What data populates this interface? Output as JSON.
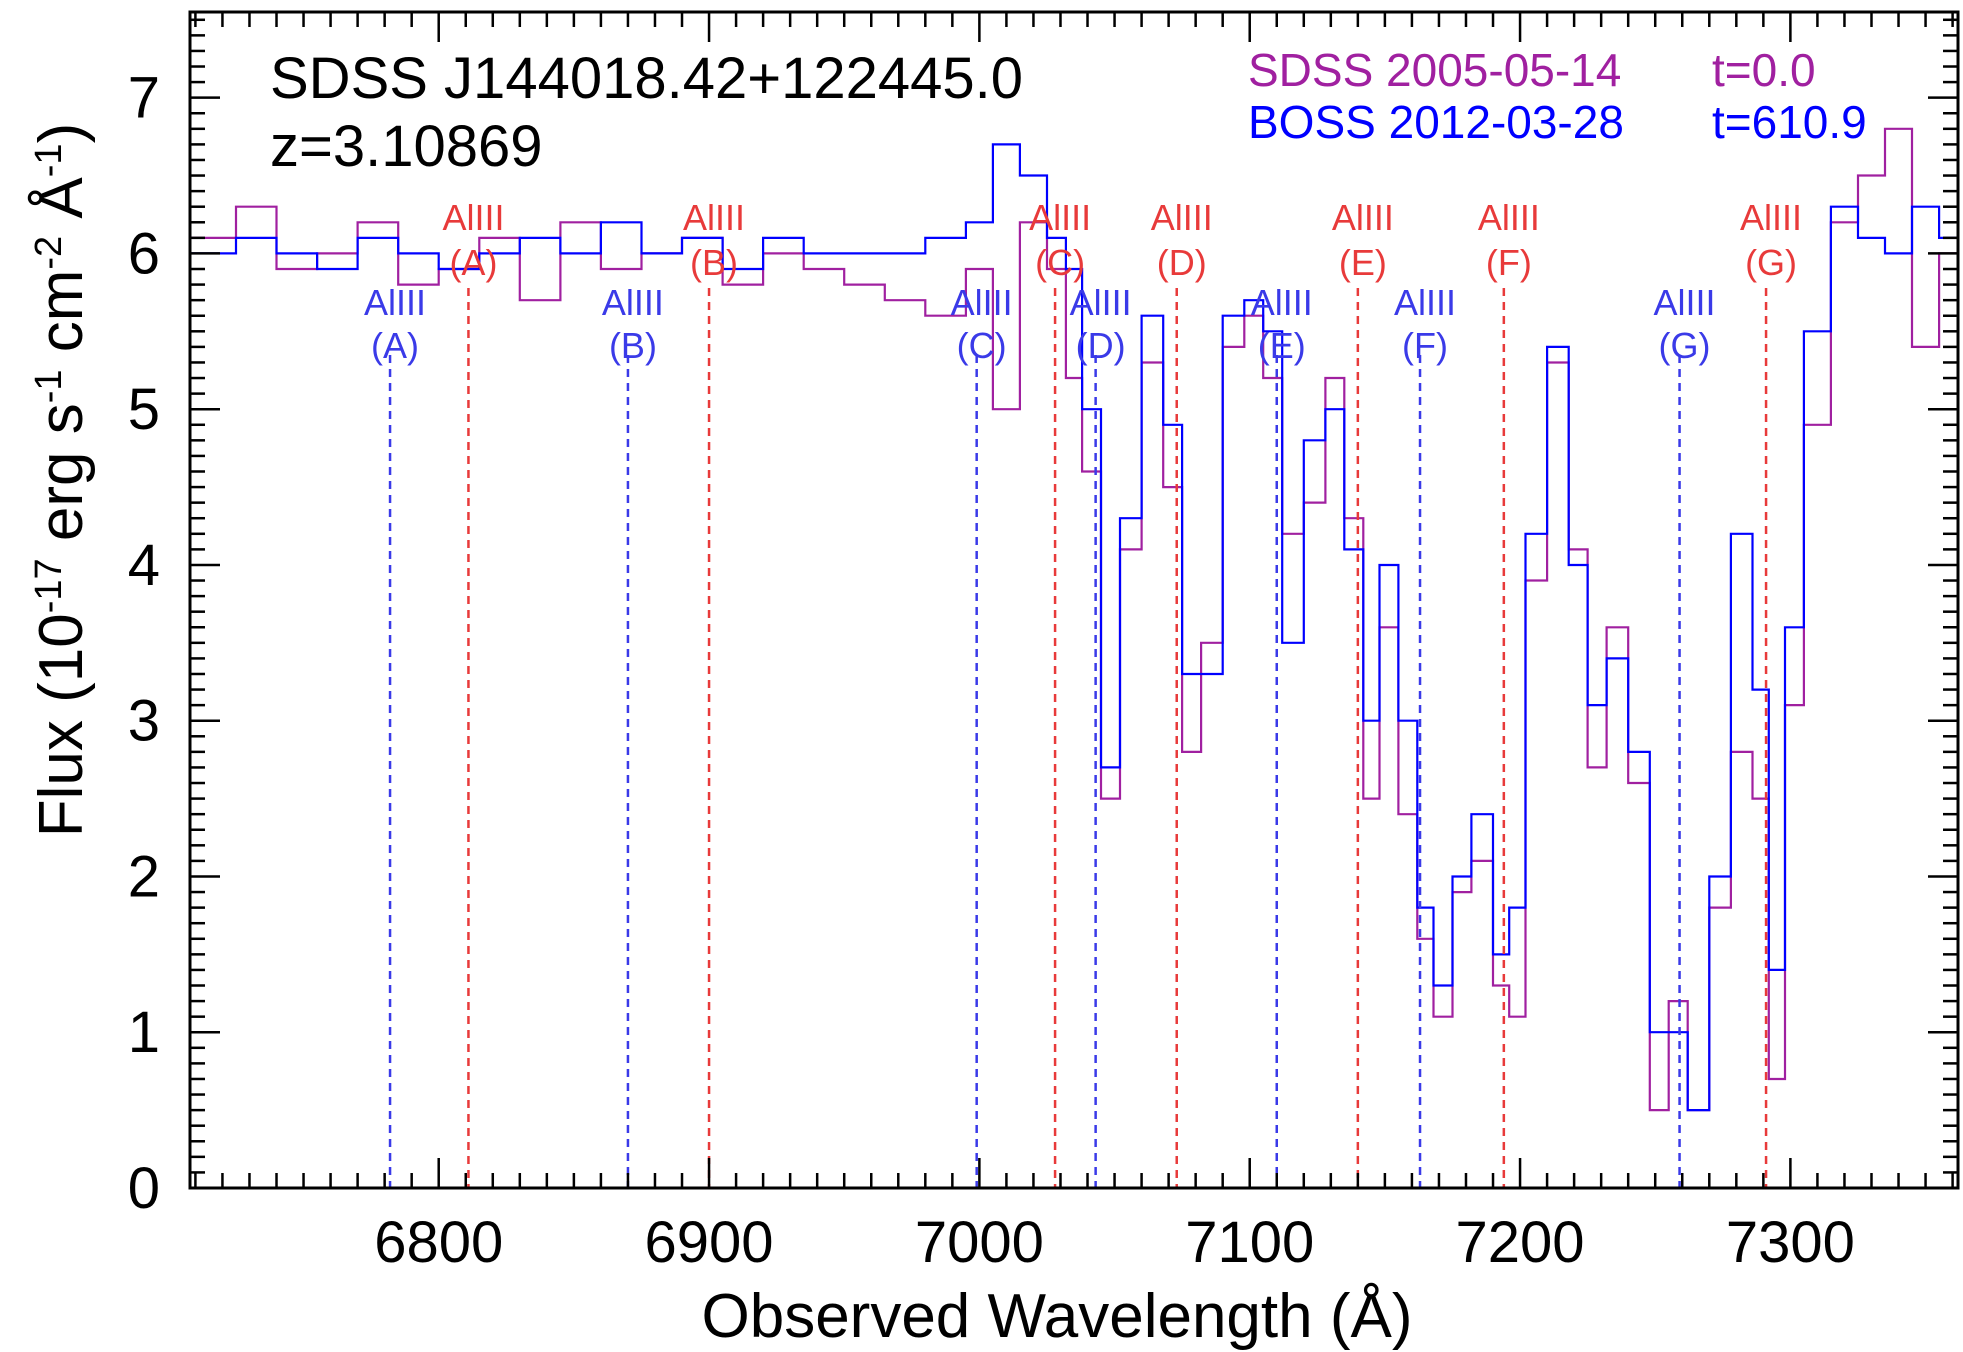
{
  "chart_data": {
    "type": "line",
    "object_name": "SDSS J144018.42+122445.0",
    "redshift_label": "z=3.10869",
    "xlabel": "Observed Wavelength (Å)",
    "ylabel": {
      "prefix": "Flux (10",
      "exp1": "-17",
      "mid1": " erg s",
      "exp2": "-1",
      "mid2": " cm",
      "exp3": "-2",
      "mid3": " Å",
      "exp4": "-1",
      "suffix": ")"
    },
    "xlim": [
      6708,
      7362
    ],
    "ylim": [
      0,
      7.55
    ],
    "xticks": [
      6800,
      6900,
      7000,
      7100,
      7200,
      7300
    ],
    "yticks": [
      0,
      1,
      2,
      3,
      4,
      5,
      6,
      7
    ],
    "series": [
      {
        "name": "SDSS 2005-05-14",
        "time_label": "t=0.0",
        "color": "#a020a0",
        "x": [
          6708,
          6725,
          6740,
          6755,
          6770,
          6785,
          6800,
          6815,
          6830,
          6845,
          6860,
          6875,
          6890,
          6905,
          6920,
          6935,
          6950,
          6965,
          6980,
          6995,
          7005,
          7015,
          7025,
          7032,
          7038,
          7045,
          7052,
          7060,
          7068,
          7075,
          7082,
          7090,
          7098,
          7105,
          7112,
          7120,
          7128,
          7135,
          7142,
          7148,
          7155,
          7162,
          7168,
          7175,
          7182,
          7190,
          7196,
          7202,
          7210,
          7218,
          7225,
          7232,
          7240,
          7248,
          7255,
          7262,
          7270,
          7278,
          7286,
          7292,
          7298,
          7305,
          7315,
          7325,
          7335,
          7345,
          7355,
          7362
        ],
        "y": [
          6.1,
          6.3,
          5.9,
          6.0,
          6.2,
          5.8,
          5.9,
          6.1,
          5.7,
          6.2,
          5.9,
          6.0,
          6.1,
          5.8,
          6.0,
          5.9,
          5.8,
          5.7,
          5.6,
          5.9,
          5.0,
          6.2,
          5.9,
          5.2,
          4.6,
          2.5,
          4.1,
          5.3,
          4.5,
          2.8,
          3.5,
          5.4,
          5.6,
          5.2,
          4.2,
          4.4,
          5.2,
          4.3,
          2.5,
          3.6,
          2.4,
          1.6,
          1.1,
          1.9,
          2.1,
          1.3,
          1.1,
          3.9,
          5.3,
          4.1,
          2.7,
          3.6,
          2.6,
          0.5,
          1.2,
          0.5,
          1.8,
          2.8,
          2.5,
          0.7,
          3.1,
          4.9,
          6.2,
          6.5,
          6.8,
          5.4,
          6.0,
          6.2
        ]
      },
      {
        "name": "BOSS 2012-03-28",
        "time_label": "t=610.9",
        "color": "#0000ff",
        "x": [
          6708,
          6725,
          6740,
          6755,
          6770,
          6785,
          6800,
          6815,
          6830,
          6845,
          6860,
          6875,
          6890,
          6905,
          6920,
          6935,
          6950,
          6965,
          6980,
          6995,
          7005,
          7015,
          7025,
          7032,
          7038,
          7045,
          7052,
          7060,
          7068,
          7075,
          7082,
          7090,
          7098,
          7105,
          7112,
          7120,
          7128,
          7135,
          7142,
          7148,
          7155,
          7162,
          7168,
          7175,
          7182,
          7190,
          7196,
          7202,
          7210,
          7218,
          7225,
          7232,
          7240,
          7248,
          7255,
          7262,
          7270,
          7278,
          7286,
          7292,
          7298,
          7305,
          7315,
          7325,
          7335,
          7345,
          7355,
          7362
        ],
        "y": [
          6.0,
          6.1,
          6.0,
          5.9,
          6.1,
          6.0,
          5.9,
          6.0,
          6.1,
          6.0,
          6.2,
          6.0,
          6.1,
          5.9,
          6.1,
          6.0,
          6.0,
          6.0,
          6.1,
          6.2,
          6.7,
          6.5,
          6.1,
          5.9,
          5.0,
          2.7,
          4.3,
          5.6,
          4.9,
          3.3,
          3.3,
          5.6,
          5.7,
          5.5,
          3.5,
          4.8,
          5.0,
          4.1,
          3.0,
          4.0,
          3.0,
          1.8,
          1.3,
          2.0,
          2.4,
          1.5,
          1.8,
          4.2,
          5.4,
          4.0,
          3.1,
          3.4,
          2.8,
          1.0,
          1.0,
          0.5,
          2.0,
          4.2,
          3.2,
          1.4,
          3.6,
          5.5,
          6.3,
          6.1,
          6.0,
          6.3,
          6.1,
          6.0
        ]
      }
    ],
    "absorption_lines": [
      {
        "series": "BOSS 2012-03-28",
        "label1": "AlIII",
        "label2": "(A)",
        "x": 6782
      },
      {
        "series": "BOSS 2012-03-28",
        "label1": "AlIII",
        "label2": "(B)",
        "x": 6870
      },
      {
        "series": "BOSS 2012-03-28",
        "label1": "AlIII",
        "label2": "(C)",
        "x": 6999
      },
      {
        "series": "BOSS 2012-03-28",
        "label1": "AlIII",
        "label2": "(D)",
        "x": 7043
      },
      {
        "series": "BOSS 2012-03-28",
        "label1": "AlIII",
        "label2": "(E)",
        "x": 7110
      },
      {
        "series": "BOSS 2012-03-28",
        "label1": "AlIII",
        "label2": "(F)",
        "x": 7163
      },
      {
        "series": "BOSS 2012-03-28",
        "label1": "AlIII",
        "label2": "(G)",
        "x": 7259
      },
      {
        "series": "SDSS 2005-05-14",
        "label1": "AlIII",
        "label2": "(A)",
        "x": 6811
      },
      {
        "series": "SDSS 2005-05-14",
        "label1": "AlIII",
        "label2": "(B)",
        "x": 6900
      },
      {
        "series": "SDSS 2005-05-14",
        "label1": "AlIII",
        "label2": "(C)",
        "x": 7028
      },
      {
        "series": "SDSS 2005-05-14",
        "label1": "AlIII",
        "label2": "(D)",
        "x": 7073
      },
      {
        "series": "SDSS 2005-05-14",
        "label1": "AlIII",
        "label2": "(E)",
        "x": 7140
      },
      {
        "series": "SDSS 2005-05-14",
        "label1": "AlIII",
        "label2": "(F)",
        "x": 7194
      },
      {
        "series": "SDSS 2005-05-14",
        "label1": "AlIII",
        "label2": "(G)",
        "x": 7291
      }
    ],
    "line_colors": {
      "SDSS 2005-05-14": "#e83a3a",
      "BOSS 2012-03-28": "#3a3ae8"
    },
    "legend_placement": "top-right",
    "grid": false
  }
}
